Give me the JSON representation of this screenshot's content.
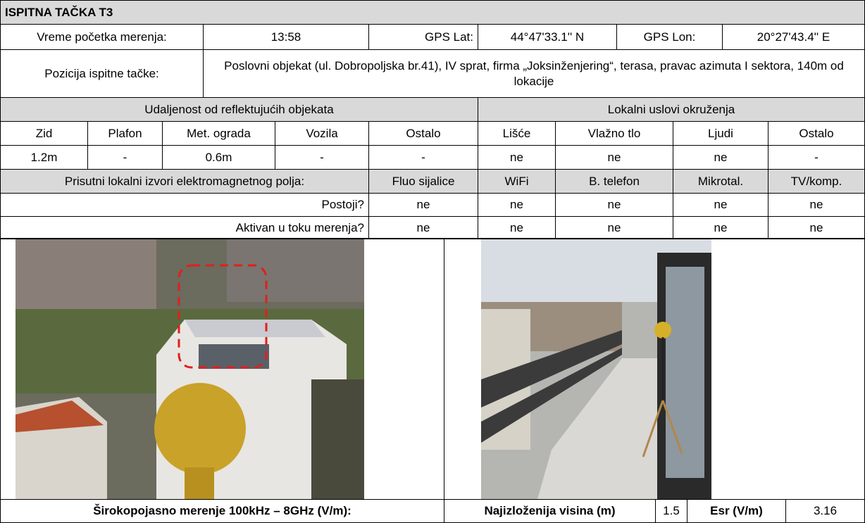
{
  "header": {
    "title": "ISPITNA TAČKA T3"
  },
  "info": {
    "start_label": "Vreme početka merenja:",
    "start_time": "13:58",
    "lat_label": "GPS Lat:",
    "lat": "44°47'33.1'' N",
    "lon_label": "GPS Lon:",
    "lon": "20°27'43.4'' E",
    "position_label": "Pozicija ispitne tačke:",
    "position": "Poslovni objekat (ul. Dobropoljska br.41), IV sprat, firma „Joksinženjering“, terasa, pravac azimuta I sektora, 140m od lokacije"
  },
  "reflective": {
    "title": "Udaljenost od reflektujućih objekata",
    "headers": [
      "Zid",
      "Plafon",
      "Met. ograda",
      "Vozila",
      "Ostalo"
    ],
    "values": [
      "1.2m",
      "-",
      "0.6m",
      "-",
      "-"
    ]
  },
  "local": {
    "title": "Lokalni uslovi okruženja",
    "headers": [
      "Lišće",
      "Vlažno tlo",
      "Ljudi",
      "Ostalo"
    ],
    "values": [
      "ne",
      "ne",
      "ne",
      "-"
    ]
  },
  "sources": {
    "title": "Prisutni lokalni izvori elektromagnetnog polja:",
    "headers": [
      "Fluo sijalice",
      "WiFi",
      "B. telefon",
      "Mikrotal.",
      "TV/komp."
    ],
    "rows": [
      {
        "label": "Postoji?",
        "values": [
          "ne",
          "ne",
          "ne",
          "ne",
          "ne"
        ]
      },
      {
        "label": "Aktivan u toku merenja?",
        "values": [
          "ne",
          "ne",
          "ne",
          "ne",
          "ne"
        ]
      }
    ]
  },
  "summary": {
    "broadband_label": "Širokopojasno merenje 100kHz – 8GHz (V/m):",
    "height_label": "Najizloženija visina (m)",
    "height": 1.5,
    "esr_label": "Esr (V/m)",
    "esr": 3.16
  }
}
